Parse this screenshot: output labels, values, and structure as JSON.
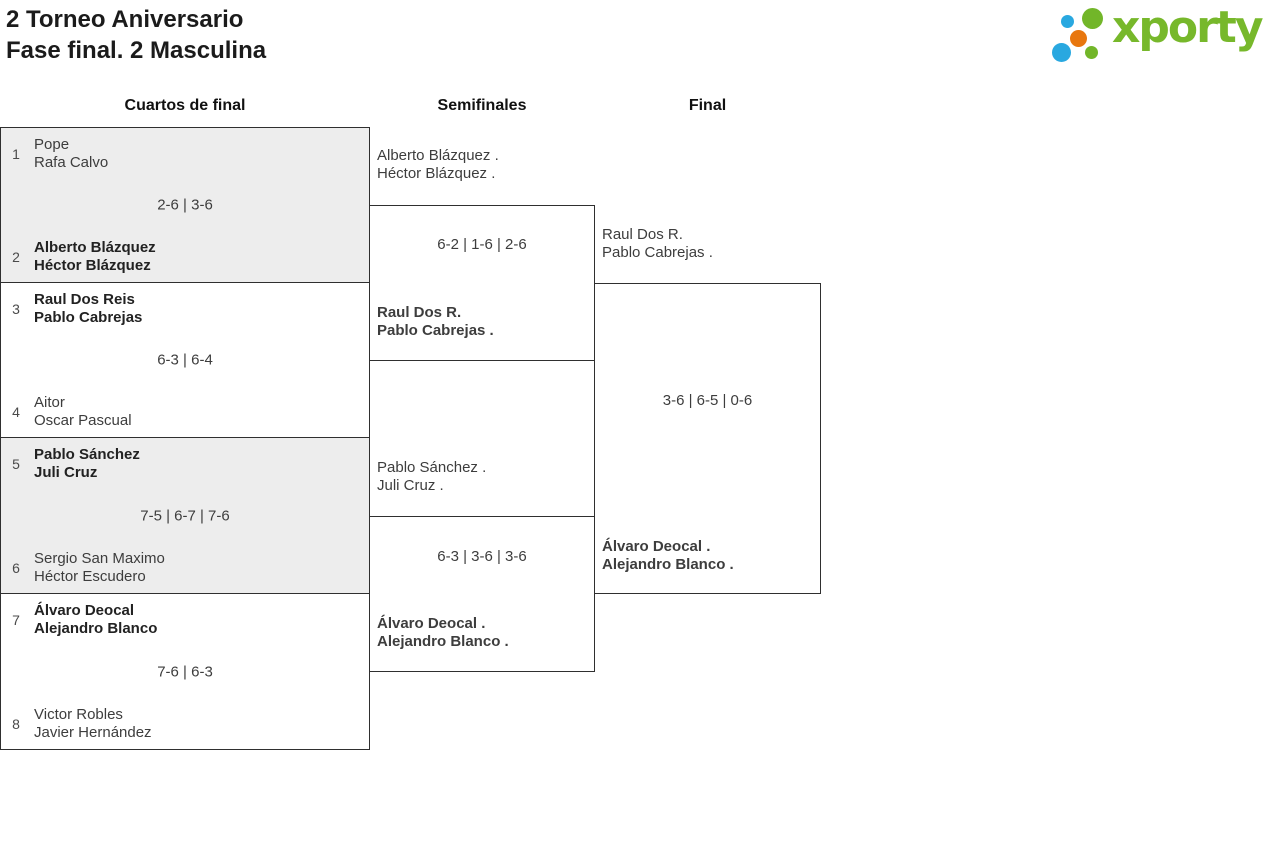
{
  "header": {
    "title_line1": "2 Torneo Aniversario",
    "title_line2": "Fase final. 2 Masculina",
    "logo_text": "xporty"
  },
  "columns": {
    "quarterfinals": "Cuartos de final",
    "semifinals": "Semifinales",
    "final": "Final"
  },
  "colors": {
    "logo_green": "#72b629",
    "logo_blue": "#29a8e0",
    "logo_orange": "#e8770e",
    "wordmark_green": "#77b82b",
    "match_shade": "#ededed",
    "bracket_line": "#2f2f2f"
  },
  "bracket": {
    "quarterfinals": [
      {
        "top": {
          "seed": "1",
          "players": [
            "Pope",
            "Rafa Calvo"
          ]
        },
        "score": "2-6 | 3-6",
        "bottom": {
          "seed": "2",
          "players": [
            "Alberto Blázquez",
            "Héctor Blázquez"
          ]
        },
        "winner": "bottom"
      },
      {
        "top": {
          "seed": "3",
          "players": [
            "Raul Dos Reis",
            "Pablo Cabrejas"
          ]
        },
        "score": "6-3 | 6-4",
        "bottom": {
          "seed": "4",
          "players": [
            "Aitor",
            "Oscar Pascual"
          ]
        },
        "winner": "top"
      },
      {
        "top": {
          "seed": "5",
          "players": [
            "Pablo Sánchez",
            "Juli Cruz"
          ]
        },
        "score": "7-5 | 6-7 | 7-6",
        "bottom": {
          "seed": "6",
          "players": [
            "Sergio San Maximo",
            "Héctor Escudero"
          ]
        },
        "winner": "top"
      },
      {
        "top": {
          "seed": "7",
          "players": [
            "Álvaro Deocal",
            "Alejandro Blanco"
          ]
        },
        "score": "7-6 | 6-3",
        "bottom": {
          "seed": "8",
          "players": [
            "Victor Robles",
            "Javier Hernández"
          ]
        },
        "winner": "top"
      }
    ],
    "semifinals": [
      {
        "top": {
          "players": [
            "Alberto Blázquez .",
            "Héctor Blázquez ."
          ]
        },
        "score": "6-2 | 1-6 | 2-6",
        "bottom": {
          "players": [
            "Raul Dos R.",
            "Pablo Cabrejas ."
          ]
        },
        "winner": "bottom"
      },
      {
        "top": {
          "players": [
            "Pablo Sánchez .",
            "Juli Cruz ."
          ]
        },
        "score": "6-3 | 3-6 | 3-6",
        "bottom": {
          "players": [
            "Álvaro Deocal .",
            "Alejandro Blanco ."
          ]
        },
        "winner": "bottom"
      }
    ],
    "final": {
      "top": {
        "players": [
          "Raul Dos R.",
          "Pablo Cabrejas ."
        ]
      },
      "score": "3-6 | 6-5 | 0-6",
      "bottom": {
        "players": [
          "Álvaro Deocal .",
          "Alejandro Blanco ."
        ]
      },
      "winner": "bottom"
    }
  }
}
